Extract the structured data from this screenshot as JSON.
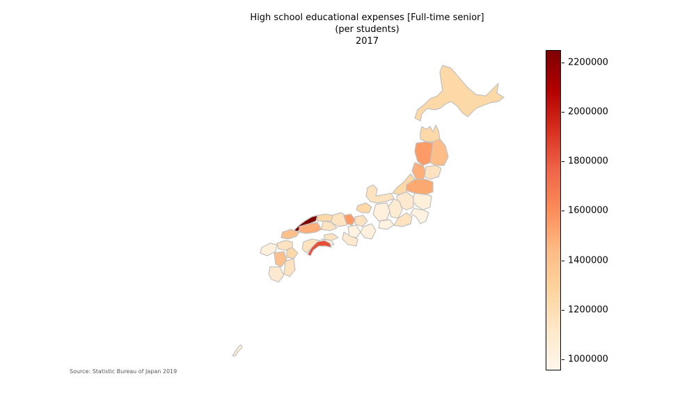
{
  "title": {
    "line1": "High school educational expenses [Full-time senior]",
    "line2": "(per students)",
    "line3": "2017"
  },
  "colorbar": {
    "colormap": "OrRd",
    "min": 955000,
    "max": 2250000,
    "ticks": [
      {
        "value": 2200000,
        "label": "2200000"
      },
      {
        "value": 2000000,
        "label": "2000000"
      },
      {
        "value": 1800000,
        "label": "1800000"
      },
      {
        "value": 1600000,
        "label": "1600000"
      },
      {
        "value": 1400000,
        "label": "1400000"
      },
      {
        "value": 1200000,
        "label": "1200000"
      },
      {
        "value": 1000000,
        "label": "1000000"
      }
    ],
    "stops": [
      "#fff7ec",
      "#fee8c8",
      "#fdd49e",
      "#fdbb84",
      "#fc8d59",
      "#ef6548",
      "#d7301f",
      "#b30000",
      "#7f0000"
    ]
  },
  "source": "Source: Statistic Bureau of Japan 2019",
  "border_color": "#c0c0c0"
}
